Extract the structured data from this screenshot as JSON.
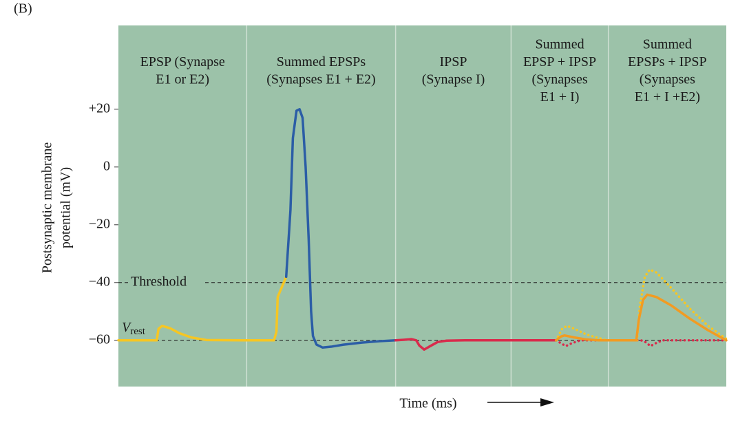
{
  "figure_label": "(B)",
  "chart_data": {
    "type": "line",
    "x_label": "Time (ms)",
    "y_label_lines": [
      "Postsynaptic membrane",
      "potential (mV)"
    ],
    "xlim": [
      0,
      100
    ],
    "ylim": [
      -76,
      49
    ],
    "yticks": [
      {
        "value": 20,
        "label": "+20"
      },
      0,
      {
        "value": -20,
        "label": "−20"
      },
      {
        "value": -40,
        "label": "−40"
      },
      {
        "value": -60,
        "label": "−60"
      }
    ],
    "panels": [
      {
        "label_lines": [
          "EPSP (Synapse",
          "E1 or E2)"
        ],
        "x_end": 21.1
      },
      {
        "label_lines": [
          "Summed EPSPs",
          "(Synapses E1 + E2)"
        ],
        "x_end": 45.6
      },
      {
        "label_lines": [
          "IPSP",
          "(Synapse I)"
        ],
        "x_end": 64.6
      },
      {
        "label_lines": [
          "Summed",
          "EPSP + IPSP",
          "(Synapses",
          "E1 + I)"
        ],
        "x_end": 80.6
      },
      {
        "label_lines": [
          "Summed",
          "EPSPs + IPSP",
          "(Synapses",
          "E1 + I +E2)"
        ],
        "x_end": 100
      }
    ],
    "threshold": {
      "label": "Threshold",
      "value": -40
    },
    "rest": {
      "label": "V",
      "subscript": "rest",
      "value": -60
    },
    "series": [
      {
        "color": "#f6c623",
        "dash": "solid",
        "x": [
          0,
          6.3,
          6.6,
          7.2,
          8.5,
          10,
          12,
          14.5,
          20,
          25.6,
          26.0,
          26.2,
          26.8,
          27.6
        ],
        "values": [
          -60,
          -60,
          -56,
          -55,
          -55.8,
          -57.5,
          -59,
          -59.9,
          -60,
          -60,
          -57,
          -45,
          -42,
          -38
        ]
      },
      {
        "color": "#2b5da6",
        "dash": "solid",
        "x": [
          27.6,
          28.3,
          28.7,
          29.3,
          29.8,
          30.3,
          30.8,
          31.3,
          31.7,
          32.0,
          32.6,
          33.6,
          35,
          37,
          40,
          43,
          45.6
        ],
        "values": [
          -38,
          -15,
          10,
          19.5,
          20,
          17,
          0,
          -25,
          -50,
          -58.5,
          -61.5,
          -62.5,
          -62.2,
          -61.5,
          -60.8,
          -60.3,
          -60
        ]
      },
      {
        "color": "#d92b4c",
        "dash": "solid",
        "x": [
          45.6,
          47,
          48.2,
          49,
          49.5,
          50.3,
          51.3,
          52.5,
          54,
          57,
          72
        ],
        "values": [
          -60,
          -59.8,
          -59.6,
          -60,
          -61.8,
          -63.2,
          -62,
          -60.6,
          -60.1,
          -60,
          -60
        ]
      },
      {
        "color": "#d92b4c",
        "dash": "dotted",
        "x": [
          72,
          72.8,
          73.6,
          74.6,
          76,
          80,
          86,
          86.8,
          87.5,
          88.4,
          89.5,
          100
        ],
        "values": [
          -60,
          -61,
          -62,
          -61,
          -60,
          -60,
          -60,
          -60.7,
          -62,
          -61,
          -60,
          -60
        ]
      },
      {
        "color": "#f6c623",
        "dash": "dotted",
        "x": [
          72,
          73,
          73.8,
          75,
          77,
          80,
          85.3,
          85.3,
          85.8,
          86.6,
          87.4,
          88.5,
          91,
          94,
          97,
          100
        ],
        "values": [
          -60,
          -56,
          -55,
          -56,
          -58,
          -59.8,
          null,
          -60,
          -48,
          -38,
          -35.5,
          -36.5,
          -42,
          -49,
          -55,
          -59.5
        ]
      },
      {
        "color": "#f29b22",
        "dash": "solid",
        "x": [
          72,
          72.8,
          73.4,
          75,
          77,
          79,
          85.2,
          85.6,
          86.3,
          87,
          88.5,
          91,
          94,
          97,
          100
        ],
        "values": [
          -60,
          -58.7,
          -58.3,
          -59,
          -59.7,
          -60,
          -60,
          -53,
          -46,
          -44.2,
          -45,
          -48,
          -52.5,
          -56.5,
          -60
        ]
      }
    ]
  }
}
